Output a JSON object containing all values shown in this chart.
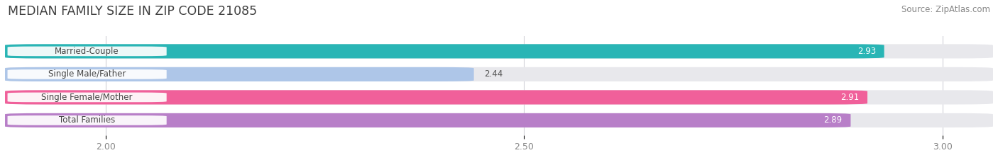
{
  "title": "MEDIAN FAMILY SIZE IN ZIP CODE 21085",
  "source": "Source: ZipAtlas.com",
  "categories": [
    "Married-Couple",
    "Single Male/Father",
    "Single Female/Mother",
    "Total Families"
  ],
  "values": [
    2.93,
    2.44,
    2.91,
    2.89
  ],
  "bar_colors": [
    "#29b5b5",
    "#aec6e8",
    "#f0609a",
    "#b87fc8"
  ],
  "label_text_color": "#444444",
  "value_colors": [
    "#ffffff",
    "#555555",
    "#ffffff",
    "#ffffff"
  ],
  "xlim_min": 1.88,
  "xlim_max": 3.06,
  "xticks": [
    2.0,
    2.5,
    3.0
  ],
  "xtick_labels": [
    "2.00",
    "2.50",
    "3.00"
  ],
  "bar_height": 0.62,
  "background_color": "#ffffff",
  "bar_bg_color": "#e8e8ec",
  "title_fontsize": 12.5,
  "source_fontsize": 8.5,
  "label_fontsize": 8.5,
  "value_fontsize": 8.5,
  "tick_fontsize": 9
}
